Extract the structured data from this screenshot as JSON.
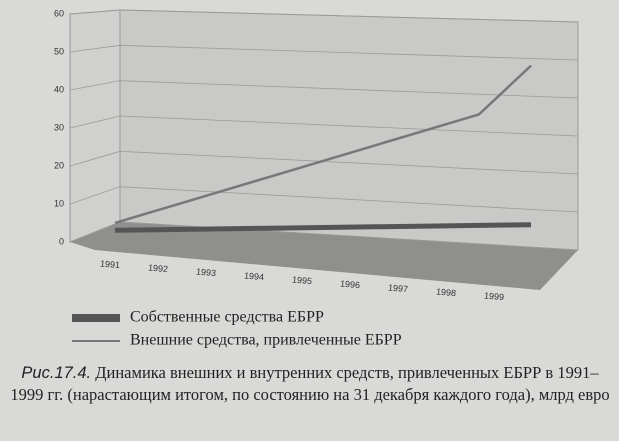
{
  "chart_data": {
    "type": "line",
    "categories": [
      "1991",
      "1992",
      "1993",
      "1994",
      "1995",
      "1996",
      "1997",
      "1998",
      "1999"
    ],
    "series": [
      {
        "name": "Собственные средства ЕБРР",
        "color": "#555555",
        "values": [
          1,
          2,
          3,
          4,
          5,
          6,
          7,
          8,
          9
        ]
      },
      {
        "name": "Внешние средства, привлеченные ЕБРР",
        "color": "#777777",
        "values": [
          3,
          8,
          13,
          18,
          23,
          28,
          33,
          38,
          52
        ]
      }
    ],
    "ylim": [
      0,
      60
    ],
    "yticks": [
      0,
      10,
      20,
      30,
      40,
      50,
      60
    ],
    "grid": true,
    "caption_label": "Рис.17.4.",
    "caption": "Динамика внешних и внутренних средств, привлеченных ЕБРР в 1991–1999 гг. (нарастающим итогом, по состоянию на 31 декабря каждого года), млрд евро"
  }
}
